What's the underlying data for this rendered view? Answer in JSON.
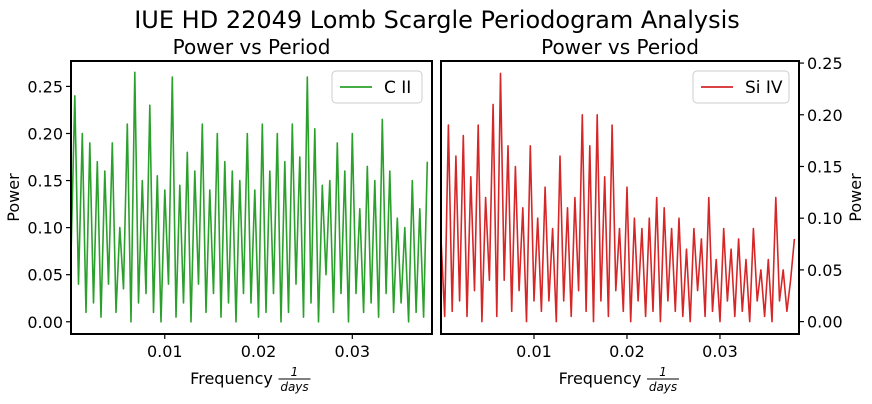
{
  "suptitle": "IUE HD 22049 Lomb Scargle Periodogram Analysis",
  "chart_data": [
    {
      "type": "line",
      "title": "Power vs Period",
      "xlabel_prefix": "Frequency",
      "xlabel_frac_num": "1",
      "xlabel_frac_den": "days",
      "ylabel": "Power",
      "xlim": [
        0.0,
        0.0385
      ],
      "ylim": [
        -0.013,
        0.277
      ],
      "xticks": [
        "0.01",
        "0.02",
        "0.03"
      ],
      "xtick_values": [
        0.01,
        0.02,
        0.03
      ],
      "yticks": [
        "0.00",
        "0.05",
        "0.10",
        "0.15",
        "0.20",
        "0.25"
      ],
      "ytick_values": [
        0.0,
        0.05,
        0.1,
        0.15,
        0.2,
        0.25
      ],
      "yaxis_side": "left",
      "legend": "top-right",
      "series": [
        {
          "name": "C II",
          "color": "#2ca02c",
          "x": [
            0.0,
            0.0004,
            0.0008,
            0.0012,
            0.0016,
            0.002,
            0.0024,
            0.0028,
            0.0032,
            0.0036,
            0.004,
            0.0044,
            0.0048,
            0.0052,
            0.0056,
            0.006,
            0.0064,
            0.0068,
            0.0072,
            0.0076,
            0.008,
            0.0084,
            0.0088,
            0.0092,
            0.0096,
            0.01,
            0.0104,
            0.0108,
            0.0112,
            0.0116,
            0.012,
            0.0124,
            0.0128,
            0.0132,
            0.0136,
            0.014,
            0.0144,
            0.0148,
            0.0152,
            0.0156,
            0.016,
            0.0164,
            0.0168,
            0.0172,
            0.0176,
            0.018,
            0.0184,
            0.0188,
            0.0192,
            0.0196,
            0.02,
            0.0204,
            0.0208,
            0.0212,
            0.0216,
            0.022,
            0.0224,
            0.0228,
            0.0232,
            0.0236,
            0.024,
            0.0244,
            0.0248,
            0.0252,
            0.0256,
            0.026,
            0.0264,
            0.0268,
            0.0272,
            0.0276,
            0.028,
            0.0284,
            0.0288,
            0.0292,
            0.0296,
            0.03,
            0.0304,
            0.0308,
            0.0312,
            0.0316,
            0.032,
            0.0324,
            0.0328,
            0.0332,
            0.0336,
            0.034,
            0.0344,
            0.0348,
            0.0352,
            0.0356,
            0.036,
            0.0364,
            0.0368,
            0.0372,
            0.0376,
            0.038
          ],
          "y": [
            0.07,
            0.24,
            0.04,
            0.2,
            0.01,
            0.19,
            0.02,
            0.17,
            0.005,
            0.16,
            0.04,
            0.19,
            0.01,
            0.1,
            0.035,
            0.21,
            0.0,
            0.265,
            0.02,
            0.15,
            0.03,
            0.23,
            0.01,
            0.155,
            0.0,
            0.14,
            0.04,
            0.26,
            0.005,
            0.145,
            0.02,
            0.18,
            0.0,
            0.16,
            0.04,
            0.21,
            0.01,
            0.14,
            0.03,
            0.2,
            0.005,
            0.17,
            0.02,
            0.16,
            0.0,
            0.15,
            0.03,
            0.2,
            0.02,
            0.14,
            0.005,
            0.21,
            0.01,
            0.16,
            0.03,
            0.2,
            0.0,
            0.17,
            0.01,
            0.21,
            0.04,
            0.175,
            0.005,
            0.26,
            0.02,
            0.205,
            0.0,
            0.145,
            0.05,
            0.15,
            0.01,
            0.19,
            0.03,
            0.16,
            0.0,
            0.2,
            0.03,
            0.12,
            0.01,
            0.165,
            0.02,
            0.15,
            0.005,
            0.215,
            0.03,
            0.16,
            0.01,
            0.11,
            0.02,
            0.1,
            0.0,
            0.15,
            0.01,
            0.12,
            0.005,
            0.17
          ]
        }
      ]
    },
    {
      "type": "line",
      "title": "Power vs Period",
      "xlabel_prefix": "Frequency",
      "xlabel_frac_num": "1",
      "xlabel_frac_den": "days",
      "ylabel": "Power",
      "xlim": [
        0.0,
        0.0385
      ],
      "ylim": [
        -0.012,
        0.252
      ],
      "xticks": [
        "0.01",
        "0.02",
        "0.03"
      ],
      "xtick_values": [
        0.01,
        0.02,
        0.03
      ],
      "yticks": [
        "0.00",
        "0.05",
        "0.10",
        "0.15",
        "0.20",
        "0.25"
      ],
      "ytick_values": [
        0.0,
        0.05,
        0.1,
        0.15,
        0.2,
        0.25
      ],
      "yaxis_side": "right",
      "legend": "top-right",
      "series": [
        {
          "name": "Si IV",
          "color": "#d62728",
          "x": [
            0.0,
            0.0004,
            0.0008,
            0.0012,
            0.0016,
            0.002,
            0.0024,
            0.0028,
            0.0032,
            0.0036,
            0.004,
            0.0044,
            0.0048,
            0.0052,
            0.0056,
            0.006,
            0.0064,
            0.0068,
            0.0072,
            0.0076,
            0.008,
            0.0084,
            0.0088,
            0.0092,
            0.0096,
            0.01,
            0.0104,
            0.0108,
            0.0112,
            0.0116,
            0.012,
            0.0124,
            0.0128,
            0.0132,
            0.0136,
            0.014,
            0.0144,
            0.0148,
            0.0152,
            0.0156,
            0.016,
            0.0164,
            0.0168,
            0.0172,
            0.0176,
            0.018,
            0.0184,
            0.0188,
            0.0192,
            0.0196,
            0.02,
            0.0204,
            0.0208,
            0.0212,
            0.0216,
            0.022,
            0.0224,
            0.0228,
            0.0232,
            0.0236,
            0.024,
            0.0244,
            0.0248,
            0.0252,
            0.0256,
            0.026,
            0.0264,
            0.0268,
            0.0272,
            0.0276,
            0.028,
            0.0284,
            0.0288,
            0.0292,
            0.0296,
            0.03,
            0.0304,
            0.0308,
            0.0312,
            0.0316,
            0.032,
            0.0324,
            0.0328,
            0.0332,
            0.0336,
            0.034,
            0.0344,
            0.0348,
            0.0352,
            0.0356,
            0.036,
            0.0364,
            0.0368,
            0.0372,
            0.0376,
            0.038
          ],
          "y": [
            0.08,
            0.005,
            0.19,
            0.01,
            0.16,
            0.02,
            0.18,
            0.005,
            0.14,
            0.03,
            0.19,
            0.0,
            0.12,
            0.04,
            0.21,
            0.005,
            0.24,
            0.04,
            0.17,
            0.01,
            0.15,
            0.03,
            0.11,
            0.0,
            0.17,
            0.02,
            0.1,
            0.01,
            0.13,
            0.02,
            0.09,
            0.0,
            0.16,
            0.02,
            0.11,
            0.005,
            0.12,
            0.03,
            0.2,
            0.01,
            0.17,
            0.0,
            0.2,
            0.02,
            0.14,
            0.005,
            0.19,
            0.03,
            0.09,
            0.01,
            0.13,
            0.0,
            0.1,
            0.02,
            0.09,
            0.005,
            0.1,
            0.01,
            0.12,
            0.0,
            0.11,
            0.02,
            0.09,
            0.01,
            0.1,
            0.005,
            0.07,
            0.0,
            0.09,
            0.03,
            0.08,
            0.005,
            0.12,
            0.01,
            0.06,
            0.0,
            0.09,
            0.02,
            0.07,
            0.005,
            0.08,
            0.01,
            0.06,
            0.0,
            0.09,
            0.02,
            0.05,
            0.005,
            0.06,
            0.0,
            0.12,
            0.02,
            0.05,
            0.01,
            0.04,
            0.08
          ]
        }
      ]
    }
  ]
}
